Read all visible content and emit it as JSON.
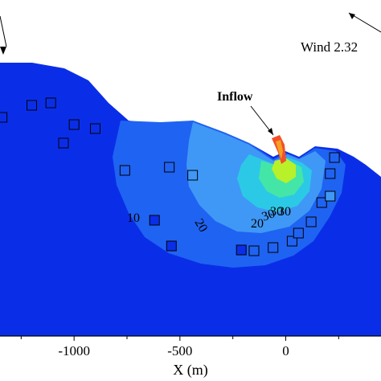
{
  "chart_data": {
    "type": "contour",
    "xlabel": "X (m)",
    "xlim": [
      -1350,
      450
    ],
    "x_ticks": [
      -1000,
      -500,
      0
    ],
    "x_tick_labels": [
      "-1000",
      "-500",
      "0"
    ],
    "annotations": {
      "wind": "Wind  2.32",
      "inflow": "Inflow"
    },
    "contour_labels": [
      "10",
      "20",
      "20",
      "30",
      "30",
      "30"
    ],
    "colors": {
      "outer": "#0a2ee8",
      "level_10": "#1f63f2",
      "level_20": "#3f98f6",
      "level_30": "#2cc9e6",
      "level_40": "#44e6a8",
      "level_50": "#b8f02a",
      "inflow_plume": "#f2502a",
      "ground": "#ffffff"
    },
    "sample_points": [
      {
        "x": -1340,
        "fill": "#0a2ee8"
      },
      {
        "x": -1200,
        "fill": "#0a2ee8"
      },
      {
        "x": -1110,
        "fill": "#0a2ee8"
      },
      {
        "x": -1000,
        "fill": "#0a2ee8"
      },
      {
        "x": -900,
        "fill": "#0a2ee8"
      },
      {
        "x": -1050,
        "fill": "#0a2ee8"
      },
      {
        "x": -760,
        "fill": "#1f63f2"
      },
      {
        "x": -550,
        "fill": "#1f63f2"
      },
      {
        "x": -440,
        "fill": "#3f98f6"
      },
      {
        "x": -620,
        "fill": "#0a2ee8"
      },
      {
        "x": -540,
        "fill": "#0a2ee8"
      },
      {
        "x": -210,
        "fill": "#0a2ee8"
      },
      {
        "x": -150,
        "fill": "#1f63f2"
      },
      {
        "x": -60,
        "fill": "#1f63f2"
      },
      {
        "x": 30,
        "fill": "#1f63f2"
      },
      {
        "x": 60,
        "fill": "#1f63f2"
      },
      {
        "x": 120,
        "fill": "#1f63f2"
      },
      {
        "x": 170,
        "fill": "#1f63f2"
      },
      {
        "x": 210,
        "fill": "#3f98f6"
      },
      {
        "x": 210,
        "fill": "#1f63f2"
      },
      {
        "x": 230,
        "fill": "#1f63f2"
      }
    ]
  }
}
